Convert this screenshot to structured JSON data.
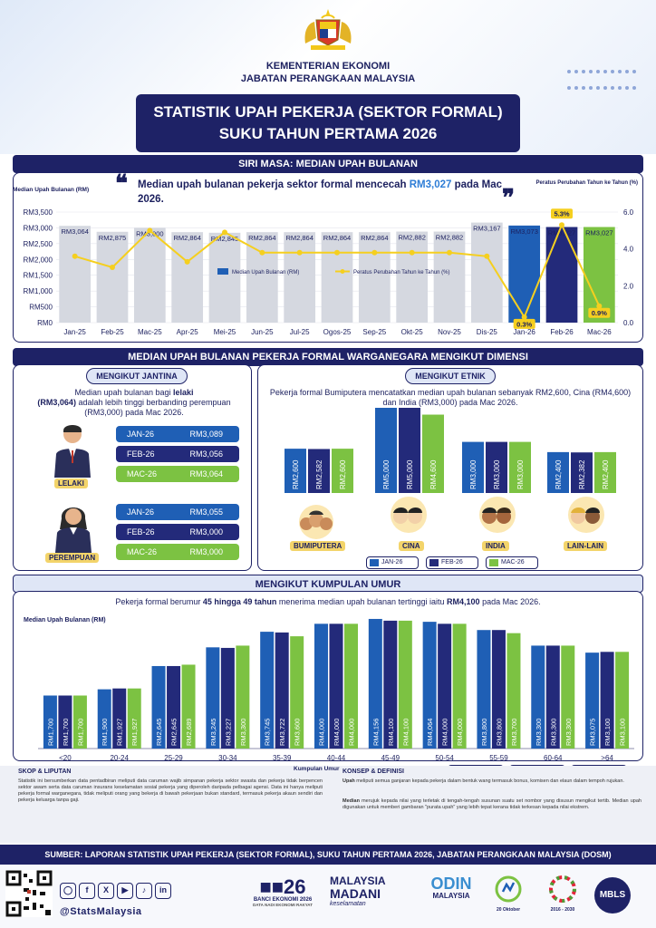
{
  "header": {
    "ministry_line1": "KEMENTERIAN EKONOMI",
    "ministry_line2": "JABATAN PERANGKAAN MALAYSIA",
    "title_line1": "STATISTIK UPAH PEKERJA (SEKTOR FORMAL)",
    "title_line2": "SUKU TAHUN PERTAMA 2026"
  },
  "series_section": {
    "bar_title": "SIRI MASA: MEDIAN UPAH BULANAN",
    "quote_prefix": "Median upah bulanan pekerja sektor formal mencecah ",
    "quote_highlight": "RM3,027",
    "quote_suffix": " pada Mac 2026.",
    "left_axis_title": "Median Upah Bulanan (RM)",
    "right_axis_title": "Peratus Perubahan Tahun ke Tahun (%)",
    "legend_bar": "Median Upah Bulanan (RM)",
    "legend_line": "Peratus Perubahan Tahun ke Tahun (%)"
  },
  "chart_data": [
    {
      "type": "bar",
      "categories": [
        "Jan-25",
        "Feb-25",
        "Mac-25",
        "Apr-25",
        "Mei-25",
        "Jun-25",
        "Jul-25",
        "Ogos-25",
        "Sep-25",
        "Okt-25",
        "Nov-25",
        "Dis-25",
        "Jan-26",
        "Feb-26",
        "Mac-26"
      ],
      "values": [
        3064,
        2875,
        3000,
        2864,
        2845,
        2864,
        2864,
        2864,
        2864,
        2882,
        2882,
        3167,
        3073,
        3027,
        3027
      ],
      "value_labels": [
        "RM3,064",
        "RM2,875",
        "RM3,000",
        "RM2,864",
        "RM2,845",
        "RM2,864",
        "RM2,864",
        "RM2,864",
        "RM2,864",
        "RM2,882",
        "RM2,882",
        "RM3,167",
        "RM3,073",
        "RM3,027",
        "RM3,027"
      ],
      "line_values": [
        3.6,
        3.0,
        5.0,
        3.3,
        4.9,
        3.8,
        3.8,
        3.8,
        3.8,
        3.8,
        3.8,
        3.6,
        0.3,
        5.3,
        0.9
      ],
      "line_value_labels": [
        "",
        "",
        "",
        "",
        "",
        "",
        "",
        "",
        "",
        "",
        "",
        "",
        "0.3%",
        "5.3%",
        "0.9%"
      ],
      "ylim": [
        0,
        3500
      ],
      "yticks": [
        "RM0",
        "RM500",
        "RM1,000",
        "RM1,500",
        "RM2,000",
        "RM2,500",
        "RM3,000",
        "RM3,500"
      ],
      "y2lim": [
        0,
        6.0
      ],
      "y2ticks": [
        "0.0",
        "2.0",
        "4.0",
        "6.0"
      ],
      "bar_colors": [
        "#d5d8e0",
        "#d5d8e0",
        "#d5d8e0",
        "#d5d8e0",
        "#d5d8e0",
        "#d5d8e0",
        "#d5d8e0",
        "#d5d8e0",
        "#d5d8e0",
        "#d5d8e0",
        "#d5d8e0",
        "#d5d8e0",
        "#1f5fb5",
        "#232a7a",
        "#7cc242"
      ],
      "line_color": "#f5cf1f"
    },
    {
      "type": "bar",
      "title": "MENGIKUT KUMPULAN UMUR",
      "categories": [
        "<20",
        "20-24",
        "25-29",
        "30-34",
        "35-39",
        "40-44",
        "45-49",
        "50-54",
        "55-59",
        "60-64",
        ">64"
      ],
      "series": [
        {
          "name": "JAN-26",
          "values": [
            1700,
            1900,
            2645,
            3245,
            3745,
            4000,
            4156,
            4064,
            3800,
            3300,
            3075
          ],
          "labels": [
            "RM1,700",
            "RM1,900",
            "RM2,645",
            "RM3,245",
            "RM3,745",
            "RM4,000",
            "RM4,156",
            "RM4,064",
            "RM3,800",
            "RM3,300",
            "RM3,075"
          ]
        },
        {
          "name": "FEB-26",
          "values": [
            1700,
            1927,
            2645,
            3227,
            3722,
            4000,
            4100,
            4000,
            3800,
            3300,
            3100
          ],
          "labels": [
            "RM1,700",
            "RM1,927",
            "RM2,645",
            "RM3,227",
            "RM3,722",
            "RM4,000",
            "RM4,100",
            "RM4,000",
            "RM3,800",
            "RM3,300",
            "RM3,100"
          ]
        },
        {
          "name": "MAC-26",
          "values": [
            1700,
            1927,
            2689,
            3300,
            3600,
            4000,
            4100,
            4000,
            3700,
            3300,
            3100
          ],
          "labels": [
            "RM1,700",
            "RM1,927",
            "RM2,689",
            "RM3,300",
            "RM3,600",
            "RM4,000",
            "RM4,100",
            "RM4,000",
            "RM3,700",
            "RM3,300",
            "RM3,100"
          ]
        }
      ],
      "ylabel": "Median Upah Bulanan (RM)",
      "xlabel": "Kumpulan Umur",
      "ylim": [
        0,
        4300
      ],
      "colors": [
        "#1f5fb5",
        "#232a7a",
        "#7cc242"
      ]
    },
    {
      "type": "bar",
      "title": "MENGIKUT ETNIK",
      "categories": [
        "BUMIPUTERA",
        "CINA",
        "INDIA",
        "LAIN-LAIN"
      ],
      "series": [
        {
          "name": "JAN-26",
          "values": [
            2600,
            5000,
            3000,
            2400
          ],
          "labels": [
            "RM2,600",
            "RM5,000",
            "RM3,000",
            "RM2,400"
          ]
        },
        {
          "name": "FEB-26",
          "values": [
            2582,
            5000,
            3000,
            2382
          ],
          "labels": [
            "RM2,582",
            "RM5,000",
            "RM3,000",
            "RM2,382"
          ]
        },
        {
          "name": "MAC-26",
          "values": [
            2600,
            4600,
            3000,
            2400
          ],
          "labels": [
            "RM2,600",
            "RM4,600",
            "RM3,000",
            "RM2,400"
          ]
        }
      ],
      "ylim": [
        0,
        5000
      ],
      "colors": [
        "#1f5fb5",
        "#232a7a",
        "#7cc242"
      ]
    }
  ],
  "dimension_section": {
    "bar_title": "MEDIAN UPAH BULANAN PEKERJA FORMAL WARGANEGARA MENGIKUT DIMENSI"
  },
  "gender": {
    "title": "MENGIKUT JANTINA",
    "desc_a": "Median upah bulanan bagi ",
    "desc_b": "lelaki",
    "desc_c": "(RM3,064)",
    "desc_d": " adalah lebih tinggi berbanding perempuan (RM3,000) pada Mac 2026.",
    "male_label": "LELAKI",
    "female_label": "PEREMPUAN",
    "male_rows": [
      {
        "month": "JAN-26",
        "value": "RM3,089"
      },
      {
        "month": "FEB-26",
        "value": "RM3,056"
      },
      {
        "month": "MAC-26",
        "value": "RM3,064"
      }
    ],
    "female_rows": [
      {
        "month": "JAN-26",
        "value": "RM3,055"
      },
      {
        "month": "FEB-26",
        "value": "RM3,000"
      },
      {
        "month": "MAC-26",
        "value": "RM3,000"
      }
    ]
  },
  "ethnic": {
    "title": "MENGIKUT ETNIK",
    "desc": "Pekerja formal Bumiputera mencatatkan median upah bulanan sebanyak RM2,600, Cina (RM4,600) dan India (RM3,000) pada Mac 2026.",
    "legend": [
      "JAN-26",
      "FEB-26",
      "MAC-26"
    ]
  },
  "age": {
    "title": "MENGIKUT KUMPULAN UMUR",
    "desc_a": "Pekerja formal berumur ",
    "desc_b": "45 hingga 49 tahun",
    "desc_c": " menerima median upah bulanan tertinggi iaitu ",
    "desc_d": "RM4,100",
    "desc_e": " pada Mac 2026.",
    "legend": [
      "JAN-26",
      "FEB-26",
      "MAC-26"
    ]
  },
  "footer": {
    "scope_title": "SKOP & LIPUTAN",
    "scope_text": "Statistik ini bersumberkan data pentadbiran meliputi data caruman wajib simpanan pekerja sektor swasta dan pekerja tidak berpencen sektor awam serta data caruman insurans keselamatan sosial pekerja yang diperoleh daripada pelbagai agensi. Data ini hanya meliputi pekerja formal warganegara, tidak meliputi orang yang bekerja di bawah pekerjaan bukan standard, termasuk pekerja akaun sendiri dan pekerja keluarga tanpa gaji.",
    "concept_title": "KONSEP & DEFINISI",
    "concept_text1_b": "Upah",
    "concept_text1": " meliputi semua ganjaran kepada pekerja dalam bentuk wang termasuk bonus, komisen dan elaun dalam tempoh rujukan.",
    "concept_text2_b": "Median",
    "concept_text2": " merujuk kepada nilai yang terletak di tengah-tengah susunan suatu set nombor yang disusun mengikut tertib. Median upah digunakan untuk memberi gambaran \"purata upah\" yang lebih tepat kerana tidak terkesan kepada nilai ekstrem.",
    "source": "SUMBER: LAPORAN STATISTIK UPAH PEKERJA (SEKTOR FORMAL), SUKU TAHUN PERTAMA 2026, JABATAN PERANGKAAN MALAYSIA (DOSM)",
    "social_handle": "@StatsMalaysia",
    "logo_banci": "BANCI EKONOMI 2026",
    "logo_banci_sub": "DATA NADI EKONOMI RAKYAT",
    "logo_madani_1": "MALAYSIA",
    "logo_madani_2": "MADANI",
    "logo_madani_3": "keselamatan",
    "logo_odin": "ODIN",
    "logo_odin_sub": "MALAYSIA",
    "logo_date": "20 Oktober",
    "logo_sdg": "2016 - 2030",
    "logo_mbls": "MBLS"
  }
}
